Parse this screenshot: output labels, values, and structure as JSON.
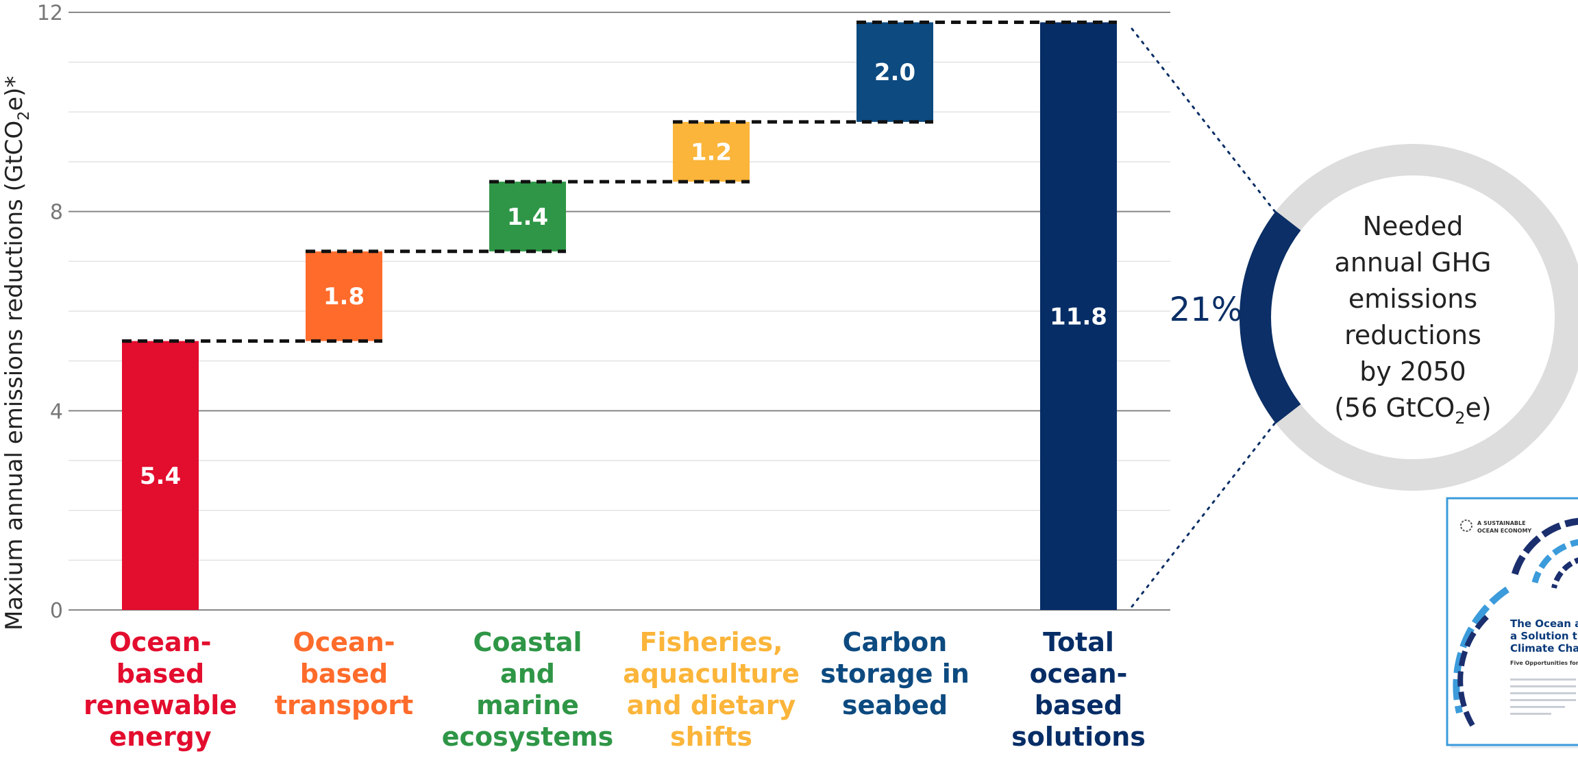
{
  "chart_data": {
    "type": "bar",
    "subtype": "waterfall",
    "ylabel_main": "Maxium annual emissions reductions (GtCO",
    "ylabel_sub": "2",
    "ylabel_end": "e)*",
    "ylim": [
      0,
      12
    ],
    "yticks": [
      "0",
      "4",
      "8",
      "12"
    ],
    "grid": true,
    "categories": [
      {
        "lines": [
          "Ocean-",
          "based",
          "renewable",
          "energy"
        ],
        "value": 5.4,
        "label": "5.4",
        "color": "#e30d2e"
      },
      {
        "lines": [
          "Ocean-",
          "based",
          "transport"
        ],
        "value": 1.8,
        "label": "1.8",
        "color": "#ff6b2b"
      },
      {
        "lines": [
          "Coastal",
          "and",
          "marine",
          "ecosystems"
        ],
        "value": 1.4,
        "label": "1.4",
        "color": "#2e9646"
      },
      {
        "lines": [
          "Fisheries,",
          "aquaculture",
          "and dietary",
          "shifts"
        ],
        "value": 1.2,
        "label": "1.2",
        "color": "#fbb53a"
      },
      {
        "lines": [
          "Carbon",
          "storage in",
          "seabed"
        ],
        "value": 2.0,
        "label": "2.0",
        "color": "#0c4a80"
      },
      {
        "lines": [
          "Total",
          "ocean-",
          "based",
          "solutions"
        ],
        "value": 11.8,
        "label": "11.8",
        "color": "#062d66",
        "total": true
      }
    ]
  },
  "ring": {
    "percent": 21,
    "percent_label": "21%",
    "lines": [
      "Needed",
      "annual GHG",
      "emissions",
      "reductions",
      "by 2050"
    ],
    "last_line_main": "(56 GtCO",
    "last_line_sub": "2",
    "last_line_end": "e)",
    "ring_color": "#dddddd",
    "segment_color": "#0b2f66"
  },
  "report": {
    "title_lines": [
      "The Ocean a",
      "a Solution t",
      "Climate Cha"
    ],
    "subtitle": "Five Opportunities for Actio",
    "header_lines": [
      "A SUSTAINABLE",
      "OCEAN ECONOMY"
    ]
  }
}
